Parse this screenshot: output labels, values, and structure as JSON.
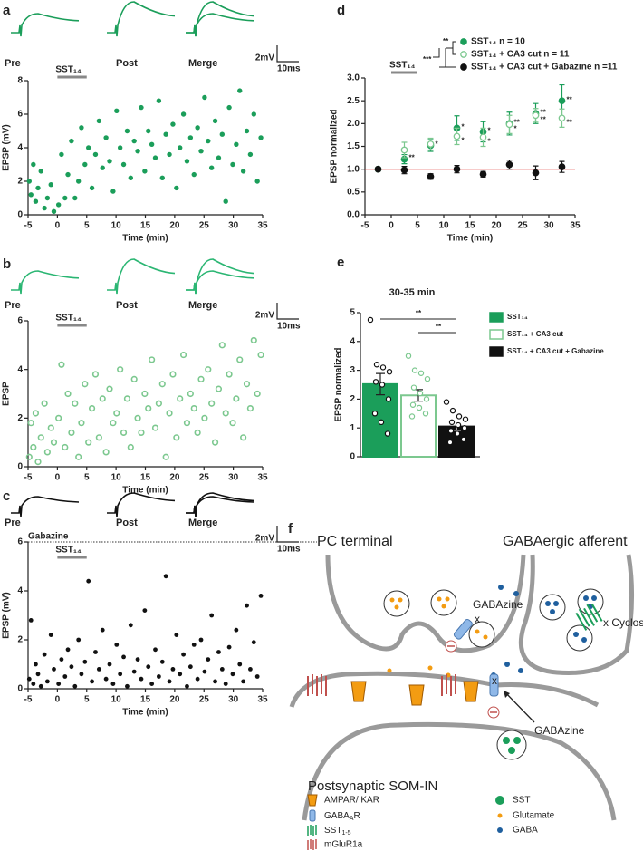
{
  "chart_data": [
    {
      "panel": "a",
      "type": "scatter",
      "color": "#1b9e5a",
      "marker": "filled",
      "trace_color": "#1b9e5a",
      "trace_labels": [
        "Pre",
        "Post",
        "Merge"
      ],
      "scale_bar": [
        "2mV",
        "10ms"
      ],
      "treatment": {
        "label": "SST₁₄",
        "start": 0,
        "end": 5
      },
      "ylabel": "EPSP (mV)",
      "xlabel": "Time (min)",
      "xlim": [
        -5,
        35
      ],
      "xticks": [
        -5,
        0,
        5,
        10,
        15,
        20,
        25,
        30,
        35
      ],
      "ylim": [
        0,
        8
      ],
      "yticks": [
        0,
        2,
        4,
        6,
        8
      ],
      "x": [
        -4.8,
        -4.5,
        -4.1,
        -3.7,
        -3.3,
        -2.8,
        -2.2,
        -1.7,
        -1.1,
        -0.6,
        0.2,
        0.7,
        1.3,
        1.8,
        2.4,
        3.0,
        3.6,
        4.1,
        4.7,
        5.3,
        5.9,
        6.5,
        7.1,
        7.7,
        8.3,
        8.9,
        9.5,
        10.1,
        10.7,
        11.3,
        11.9,
        12.5,
        13.1,
        13.7,
        14.3,
        14.9,
        15.5,
        16.1,
        16.7,
        17.3,
        17.9,
        18.5,
        19.1,
        19.7,
        20.3,
        20.9,
        21.5,
        22.1,
        22.7,
        23.3,
        23.9,
        24.5,
        25.1,
        25.7,
        26.3,
        26.9,
        27.5,
        28.1,
        28.7,
        29.3,
        29.9,
        30.5,
        31.1,
        31.7,
        32.3,
        32.9,
        33.5,
        34.1,
        34.7
      ],
      "values": [
        2.0,
        1.2,
        3.0,
        0.8,
        1.6,
        2.6,
        0.4,
        1.0,
        1.8,
        0.2,
        0.6,
        3.6,
        1.0,
        2.4,
        4.4,
        1.0,
        2.0,
        5.2,
        3.0,
        4.0,
        1.6,
        3.6,
        5.6,
        2.8,
        4.6,
        3.2,
        1.4,
        6.2,
        4.0,
        3.0,
        5.0,
        2.2,
        4.4,
        3.8,
        6.4,
        2.6,
        5.0,
        4.2,
        3.4,
        6.8,
        2.2,
        4.8,
        3.6,
        5.4,
        1.6,
        4.0,
        6.0,
        3.2,
        4.6,
        2.4,
        5.2,
        3.8,
        7.0,
        4.4,
        2.8,
        5.6,
        3.4,
        4.8,
        0.8,
        6.4,
        3.0,
        4.2,
        7.4,
        2.6,
        5.0,
        3.6,
        6.0,
        2.0,
        4.6
      ]
    },
    {
      "panel": "b",
      "type": "scatter",
      "color": "#7cc88f",
      "marker": "open",
      "trace_color": "#2bb673",
      "trace_labels": [
        "Pre",
        "Post",
        "Merge"
      ],
      "scale_bar": [
        "2mV",
        "10ms"
      ],
      "treatment": {
        "label": "SST₁₄",
        "start": 0,
        "end": 5
      },
      "ylabel": "EPSP",
      "xlabel": "Time (min)",
      "xlim": [
        -5,
        35
      ],
      "xticks": [
        -5,
        0,
        5,
        10,
        15,
        20,
        25,
        30,
        35
      ],
      "ylim": [
        0,
        6
      ],
      "yticks": [
        0,
        2,
        4,
        6
      ],
      "x": [
        -4.8,
        -4.5,
        -4.1,
        -3.7,
        -3.3,
        -2.8,
        -2.2,
        -1.7,
        -1.1,
        -0.6,
        0.2,
        0.7,
        1.3,
        1.8,
        2.4,
        3.0,
        3.6,
        4.1,
        4.7,
        5.3,
        5.9,
        6.5,
        7.1,
        7.7,
        8.3,
        8.9,
        9.5,
        10.1,
        10.7,
        11.3,
        11.9,
        12.5,
        13.1,
        13.7,
        14.3,
        14.9,
        15.5,
        16.1,
        16.7,
        17.3,
        17.9,
        18.5,
        19.1,
        19.7,
        20.3,
        20.9,
        21.5,
        22.1,
        22.7,
        23.3,
        23.9,
        24.5,
        25.1,
        25.7,
        26.3,
        26.9,
        27.5,
        28.1,
        28.7,
        29.3,
        29.9,
        30.5,
        31.1,
        31.7,
        32.3,
        32.9,
        33.5,
        34.1,
        34.7
      ],
      "values": [
        0.4,
        1.8,
        0.8,
        2.2,
        0.2,
        1.2,
        2.6,
        0.6,
        1.6,
        1.0,
        2.0,
        4.2,
        0.8,
        3.0,
        1.4,
        2.6,
        0.4,
        1.8,
        3.4,
        1.0,
        2.4,
        3.8,
        1.2,
        2.8,
        0.6,
        3.2,
        1.8,
        2.2,
        4.0,
        1.4,
        2.8,
        0.8,
        3.6,
        2.0,
        1.4,
        3.0,
        2.4,
        4.4,
        1.6,
        2.6,
        3.4,
        0.4,
        2.2,
        3.8,
        1.2,
        2.8,
        4.6,
        1.8,
        3.0,
        2.4,
        1.4,
        3.6,
        2.0,
        4.0,
        2.6,
        1.0,
        3.2,
        5.0,
        2.2,
        3.8,
        1.8,
        2.8,
        4.4,
        1.2,
        3.4,
        2.4,
        5.2,
        3.0,
        4.6
      ]
    },
    {
      "panel": "c",
      "type": "scatter",
      "color": "#111111",
      "marker": "filled",
      "trace_color": "#111111",
      "trace_labels": [
        "Pre",
        "Post",
        "Merge"
      ],
      "scale_bar": [
        "2mV",
        "10ms"
      ],
      "condition_label": "Gabazine",
      "treatment": {
        "label": "SST₁₄",
        "start": 0,
        "end": 5
      },
      "ylabel": "EPSP (mV)",
      "xlabel": "Time (min)",
      "xlim": [
        -5,
        35
      ],
      "xticks": [
        -5,
        0,
        5,
        10,
        15,
        20,
        25,
        30,
        35
      ],
      "ylim": [
        0,
        6
      ],
      "yticks": [
        0,
        2,
        4,
        6
      ],
      "x": [
        -4.8,
        -4.5,
        -4.1,
        -3.7,
        -3.3,
        -2.8,
        -2.2,
        -1.7,
        -1.1,
        -0.6,
        0.2,
        0.7,
        1.3,
        1.8,
        2.4,
        3.0,
        3.6,
        4.1,
        4.7,
        5.3,
        5.9,
        6.5,
        7.1,
        7.7,
        8.3,
        8.9,
        9.5,
        10.1,
        10.7,
        11.3,
        11.9,
        12.5,
        13.1,
        13.7,
        14.3,
        14.9,
        15.5,
        16.1,
        16.7,
        17.3,
        17.9,
        18.5,
        19.1,
        19.7,
        20.3,
        20.9,
        21.5,
        22.1,
        22.7,
        23.3,
        23.9,
        24.5,
        25.1,
        25.7,
        26.3,
        26.9,
        27.5,
        28.1,
        28.7,
        29.3,
        29.9,
        30.5,
        31.1,
        31.7,
        32.3,
        32.9,
        33.5,
        34.1,
        34.7
      ],
      "values": [
        0.4,
        2.8,
        0.2,
        1.0,
        0.6,
        0.1,
        1.4,
        0.3,
        2.2,
        0.8,
        0.2,
        1.2,
        0.5,
        1.6,
        0.9,
        0.1,
        2.0,
        0.6,
        1.1,
        4.4,
        0.3,
        1.5,
        0.8,
        2.4,
        0.4,
        1.0,
        0.2,
        1.8,
        0.6,
        1.3,
        0.1,
        2.6,
        0.7,
        1.2,
        0.4,
        3.2,
        0.9,
        0.2,
        1.6,
        0.5,
        1.1,
        4.6,
        0.3,
        0.8,
        2.2,
        0.6,
        1.4,
        0.1,
        0.9,
        1.8,
        0.4,
        2.0,
        0.7,
        1.2,
        3.0,
        0.3,
        1.5,
        0.8,
        0.2,
        1.7,
        0.6,
        2.4,
        1.0,
        0.3,
        3.4,
        0.8,
        1.9,
        0.5,
        3.8
      ]
    },
    {
      "panel": "d",
      "type": "errorbar",
      "ylabel": "EPSP normalized",
      "xlabel": "Time (min)",
      "treatment": {
        "label": "SST₁₄",
        "start": 0,
        "end": 5
      },
      "hline": 1,
      "hline_color": "#e0302a",
      "legend_annotations": [
        "***",
        "**"
      ],
      "xlim": [
        -5,
        35
      ],
      "xticks": [
        -5,
        0,
        5,
        10,
        15,
        20,
        25,
        30,
        35
      ],
      "ylim": [
        0,
        3
      ],
      "yticks": [
        {
          "value": 0,
          "label": "0.0"
        },
        {
          "value": 0.5,
          "label": "0.5"
        },
        {
          "value": 1,
          "label": "1.0"
        },
        {
          "value": 1.5,
          "label": "1.5"
        },
        {
          "value": 2,
          "label": "2.0"
        },
        {
          "value": 2.5,
          "label": "2.5"
        },
        {
          "value": 3,
          "label": "3.0"
        }
      ],
      "x": [
        -2.5,
        2.5,
        7.5,
        12.5,
        17.5,
        22.5,
        27.5,
        32.5
      ],
      "series": [
        {
          "name": "SST₁₄  n = 10",
          "color": "#1b9e5a",
          "marker": "filled",
          "values": [
            1.0,
            1.22,
            1.52,
            1.9,
            1.82,
            2.0,
            2.22,
            2.5
          ],
          "errors": [
            0.02,
            0.1,
            0.13,
            0.27,
            0.22,
            0.25,
            0.22,
            0.35
          ],
          "stars": [
            null,
            "**",
            "*",
            "*",
            "*",
            "**",
            "**",
            "**"
          ]
        },
        {
          "name": "SST₁₄ + CA3 cut n = 11",
          "color": "#7cc88f",
          "marker": "open",
          "values": [
            1.0,
            1.42,
            1.55,
            1.72,
            1.7,
            1.98,
            2.18,
            2.12
          ],
          "errors": [
            0.02,
            0.17,
            0.13,
            0.18,
            0.2,
            0.2,
            0.15,
            0.2
          ],
          "stars": [
            null,
            null,
            null,
            "*",
            "*",
            "*",
            "**",
            "**"
          ]
        },
        {
          "name": "SST₁₄ + CA3 cut + Gabazine n =11",
          "color": "#111111",
          "marker": "filled",
          "values": [
            1.0,
            0.98,
            0.84,
            1.0,
            0.89,
            1.1,
            0.92,
            1.05
          ],
          "errors": [
            0.02,
            0.08,
            0.06,
            0.08,
            0.06,
            0.1,
            0.15,
            0.12
          ],
          "stars": [
            null,
            null,
            null,
            null,
            null,
            null,
            null,
            null
          ]
        }
      ]
    },
    {
      "panel": "e",
      "type": "bar",
      "title": "30-35 min",
      "ylabel": "EPSP normalized",
      "annotations": [
        "**",
        "**"
      ],
      "ylim": [
        0,
        5
      ],
      "yticks": [
        0,
        1,
        2,
        3,
        4,
        5
      ],
      "series": [
        {
          "name": "SST₁₄",
          "color": "#1b9e5a",
          "fill": "#1b9e5a",
          "point_color": "#111111",
          "value": 2.52,
          "error": 0.37,
          "points": [
            4.75,
            3.2,
            3.1,
            2.95,
            2.6,
            2.5,
            2.0,
            1.5,
            1.2,
            0.8
          ]
        },
        {
          "name": "SST₁₄ + CA3 cut",
          "color": "#7cc88f",
          "fill": "#ffffff",
          "point_color": "#7cc88f",
          "value": 2.13,
          "error": 0.2,
          "points": [
            3.5,
            3.0,
            2.9,
            2.7,
            2.4,
            2.2,
            2.0,
            1.8,
            1.7,
            1.5,
            1.4
          ]
        },
        {
          "name": "SST₁₄ + CA3 cut + Gabazine",
          "color": "#111111",
          "fill": "#111111",
          "point_color": "#111111",
          "value": 1.05,
          "error": 0.13,
          "points": [
            1.9,
            1.6,
            1.4,
            1.3,
            1.2,
            1.1,
            1.0,
            0.9,
            0.8,
            0.6,
            0.5
          ]
        }
      ]
    }
  ],
  "diagram": {
    "panel": "f",
    "titles": [
      "PC terminal",
      "GABAergic afferent"
    ],
    "annotations": [
      "GABAzine",
      "x",
      "x Cyclosom",
      "GABAzine",
      "x"
    ],
    "region": "Postsynaptic SOM-IN",
    "legend": [
      {
        "label": "AMPAR/ KAR"
      },
      {
        "label": "GABA",
        "sub": "A",
        "tail": "R"
      },
      {
        "label": "SST",
        "sub": "1-5"
      },
      {
        "label": "mGluR1a"
      },
      {
        "label": "SST"
      },
      {
        "label": "Glutamate"
      },
      {
        "label": "GABA"
      }
    ]
  }
}
